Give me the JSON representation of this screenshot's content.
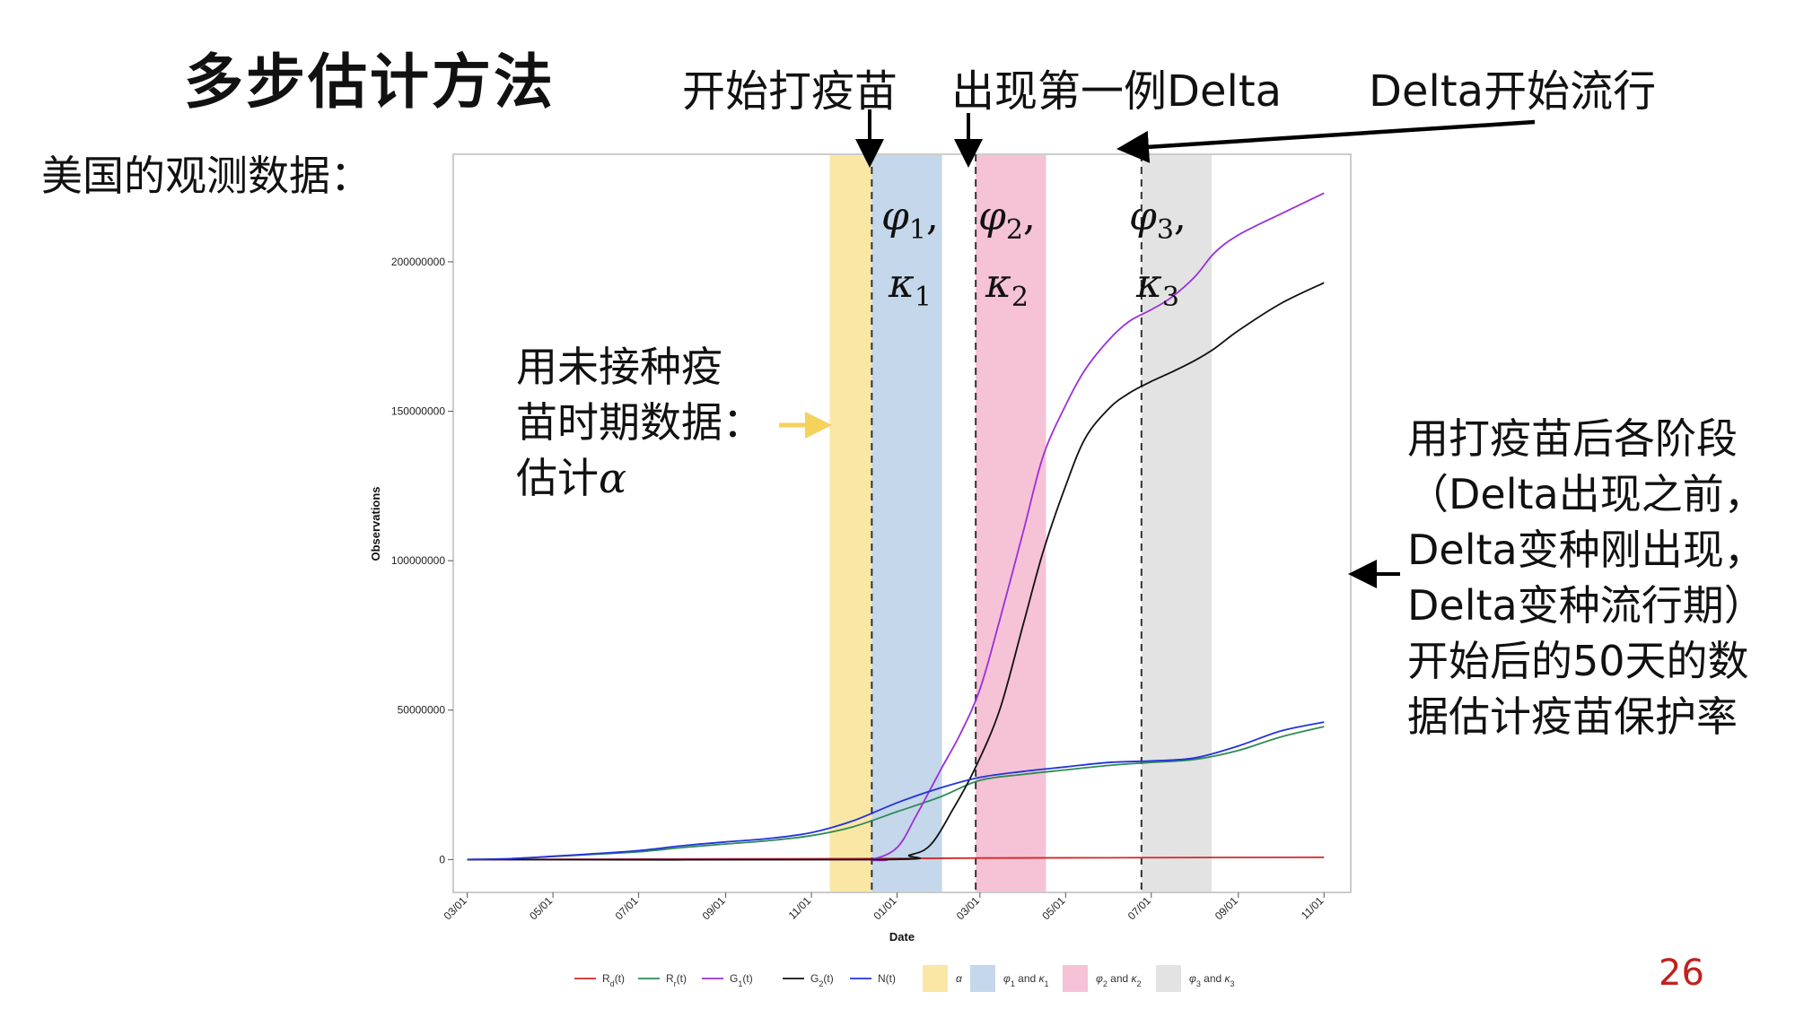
{
  "slide": {
    "title": "多步估计方法",
    "subtitle": "美国的观测数据：",
    "page_number": "26"
  },
  "annotations": {
    "start_vaccination": "开始打疫苗",
    "first_delta": "出现第一例Delta",
    "delta_prevalent": "Delta开始流行",
    "left_note": [
      "用未接种疫",
      "苗时期数据：",
      "估计"
    ],
    "alpha_symbol": "α",
    "right_note": [
      "用打疫苗后各阶段",
      "（Delta出现之前，",
      "Delta变种刚出现，",
      "Delta变种流行期）",
      "开始后的50天的数",
      "据估计疫苗保护率"
    ],
    "params": [
      {
        "phi": "φ",
        "kappa": "κ",
        "sub": "1",
        "sep": ","
      },
      {
        "phi": "φ",
        "kappa": "κ",
        "sub": "2",
        "sep": ","
      },
      {
        "phi": "φ",
        "kappa": "κ",
        "sub": "3",
        "sep": ","
      }
    ]
  },
  "colors": {
    "Rd": "#d62728",
    "Rr": "#2e8b57",
    "G1": "#9b30d9",
    "G2": "#111111",
    "N": "#2233dd",
    "alpha_band": "#fae7a5",
    "phi1_band": "#c5d7ea",
    "phi2_band": "#f5c2d6",
    "phi3_band": "#e3e3e3",
    "arrow_yellow": "#f5d25c",
    "page_number": "#c0211f"
  },
  "chart_data": {
    "type": "line",
    "xlabel": "Date",
    "ylabel": "Observations",
    "x_ticks": [
      "03/01",
      "05/01",
      "07/01",
      "09/01",
      "11/01",
      "01/01",
      "03/01",
      "05/01",
      "07/01",
      "09/01",
      "11/01"
    ],
    "x_tick_dates": [
      "2020-03-01",
      "2020-05-01",
      "2020-07-01",
      "2020-09-01",
      "2020-11-01",
      "2021-01-01",
      "2021-03-01",
      "2021-05-01",
      "2021-07-01",
      "2021-09-01",
      "2021-11-01"
    ],
    "xlim": [
      "2020-02-20",
      "2021-11-20"
    ],
    "y_ticks": [
      0,
      50000000,
      100000000,
      150000000,
      200000000
    ],
    "y_tick_labels": [
      "0",
      "50000000",
      "100000000",
      "150000000",
      "200000000"
    ],
    "ylim": [
      -11000000,
      236000000
    ],
    "grid": false,
    "legend_position": "bottom",
    "bands": [
      {
        "name": "α",
        "start": "2020-11-14",
        "end": "2020-12-14"
      },
      {
        "name": "φ1 and κ1",
        "start": "2020-12-14",
        "end": "2021-02-02"
      },
      {
        "name": "φ2 and κ2",
        "start": "2021-02-26",
        "end": "2021-04-17"
      },
      {
        "name": "φ3 and κ3",
        "start": "2021-06-24",
        "end": "2021-08-13"
      }
    ],
    "vlines": [
      "2020-12-14",
      "2021-02-26",
      "2021-06-24"
    ],
    "series": [
      {
        "name": "Rd(t)",
        "label_main": "R",
        "label_sub": "d",
        "label_tail": "(t)",
        "color_key": "Rd",
        "x": [
          "2020-03-01",
          "2020-06-01",
          "2020-09-01",
          "2020-12-01",
          "2021-03-01",
          "2021-06-01",
          "2021-09-01",
          "2021-11-01"
        ],
        "values": [
          0,
          100000,
          200000,
          300000,
          500000,
          600000,
          700000,
          750000
        ]
      },
      {
        "name": "Rr(t)",
        "label_main": "R",
        "label_sub": "r",
        "label_tail": "(t)",
        "color_key": "Rr",
        "x": [
          "2020-03-01",
          "2020-04-01",
          "2020-05-01",
          "2020-06-01",
          "2020-07-01",
          "2020-08-01",
          "2020-09-01",
          "2020-10-01",
          "2020-11-01",
          "2020-12-01",
          "2021-01-01",
          "2021-02-01",
          "2021-03-01",
          "2021-04-01",
          "2021-05-01",
          "2021-06-01",
          "2021-07-01",
          "2021-08-01",
          "2021-09-01",
          "2021-10-01",
          "2021-11-01"
        ],
        "values": [
          0,
          300000,
          1000000,
          1800000,
          2600000,
          4000000,
          5200000,
          6300000,
          8000000,
          11000000,
          16000000,
          21000000,
          26500000,
          28500000,
          30000000,
          31500000,
          32500000,
          33500000,
          36500000,
          41000000,
          44500000
        ]
      },
      {
        "name": "G1(t)",
        "label_main": "G",
        "label_sub": "1",
        "label_tail": "(t)",
        "color_key": "G1",
        "x": [
          "2020-03-01",
          "2020-12-01",
          "2020-12-14",
          "2021-01-01",
          "2021-01-15",
          "2021-02-01",
          "2021-02-15",
          "2021-03-01",
          "2021-03-15",
          "2021-04-01",
          "2021-04-15",
          "2021-05-01",
          "2021-05-15",
          "2021-06-01",
          "2021-06-15",
          "2021-07-01",
          "2021-07-15",
          "2021-08-01",
          "2021-08-15",
          "2021-09-01",
          "2021-10-01",
          "2021-11-01"
        ],
        "values": [
          0,
          0,
          0,
          4000000,
          15000000,
          30000000,
          42000000,
          57000000,
          80000000,
          110000000,
          135000000,
          152000000,
          164000000,
          174000000,
          180000000,
          184000000,
          188000000,
          195000000,
          203000000,
          209000000,
          216000000,
          223000000
        ]
      },
      {
        "name": "G2(t)",
        "label_main": "G",
        "label_sub": "2",
        "label_tail": "(t)",
        "color_key": "G2",
        "x": [
          "2020-03-01",
          "2020-12-20",
          "2021-01-10",
          "2021-01-25",
          "2021-02-10",
          "2021-02-25",
          "2021-03-15",
          "2021-04-01",
          "2021-04-15",
          "2021-05-01",
          "2021-05-15",
          "2021-06-01",
          "2021-06-15",
          "2021-07-01",
          "2021-07-15",
          "2021-08-01",
          "2021-08-15",
          "2021-09-01",
          "2021-10-01",
          "2021-11-01"
        ],
        "values": [
          0,
          0,
          1500000,
          5000000,
          17000000,
          30000000,
          50000000,
          79000000,
          103000000,
          125000000,
          141000000,
          151000000,
          156000000,
          160000000,
          163000000,
          167000000,
          171000000,
          177000000,
          186000000,
          193000000
        ]
      },
      {
        "name": "N(t)",
        "label_main": "N",
        "label_sub": "",
        "label_tail": "(t)",
        "color_key": "N",
        "x": [
          "2020-03-01",
          "2020-04-01",
          "2020-05-01",
          "2020-06-01",
          "2020-07-01",
          "2020-08-01",
          "2020-09-01",
          "2020-10-01",
          "2020-11-01",
          "2020-12-01",
          "2021-01-01",
          "2021-02-01",
          "2021-03-01",
          "2021-04-01",
          "2021-05-01",
          "2021-06-01",
          "2021-07-01",
          "2021-08-01",
          "2021-09-01",
          "2021-10-01",
          "2021-11-01"
        ],
        "values": [
          0,
          300000,
          1100000,
          2000000,
          3000000,
          4600000,
          5900000,
          7000000,
          9000000,
          13000000,
          19000000,
          24000000,
          27500000,
          29500000,
          31000000,
          32500000,
          33000000,
          34000000,
          38000000,
          43000000,
          46000000
        ]
      }
    ],
    "legend_bands": [
      {
        "symbol": "α",
        "text": ""
      },
      {
        "symbol": "φ",
        "sub": "1",
        "text": " and ",
        "symbol2": "κ",
        "sub2": "1"
      },
      {
        "symbol": "φ",
        "sub": "2",
        "text": " and ",
        "symbol2": "κ",
        "sub2": "2"
      },
      {
        "symbol": "φ",
        "sub": "3",
        "text": " and ",
        "symbol2": "κ",
        "sub2": "3"
      }
    ]
  }
}
